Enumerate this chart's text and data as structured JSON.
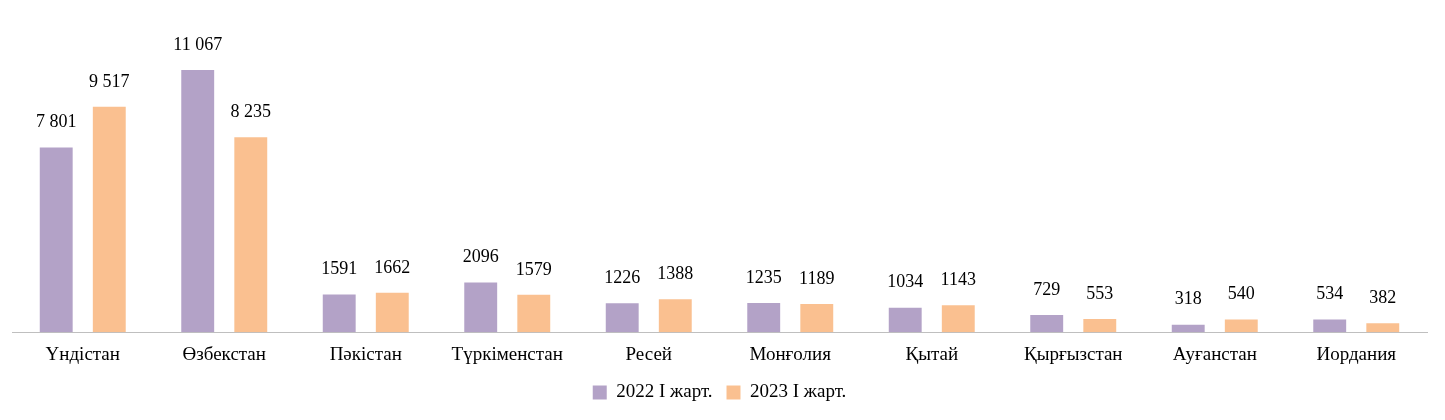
{
  "chart_data": {
    "type": "bar",
    "categories": [
      "Үндістан",
      "Өзбекстан",
      "Пәкістан",
      "Түркіменстан",
      "Ресей",
      "Монғолия",
      "Қытай",
      "Қырғызстан",
      "Ауғанстан",
      "Иордания"
    ],
    "series": [
      {
        "name": "2022 І жарт.",
        "color": "#b3a2c7",
        "values": [
          7801,
          11067,
          1591,
          2096,
          1226,
          1235,
          1034,
          729,
          318,
          534
        ],
        "value_labels": [
          "7 801",
          "11 067",
          "1591",
          "2096",
          "1226",
          "1235",
          "1034",
          "729",
          "318",
          "534"
        ]
      },
      {
        "name": "2023 І жарт.",
        "color": "#fac090",
        "values": [
          9517,
          8235,
          1662,
          1579,
          1388,
          1189,
          1143,
          553,
          540,
          382
        ],
        "value_labels": [
          "9 517",
          "8 235",
          "1662",
          "1579",
          "1388",
          "1189",
          "1143",
          "553",
          "540",
          "382"
        ]
      }
    ],
    "legend": "bottom",
    "grid": false
  }
}
